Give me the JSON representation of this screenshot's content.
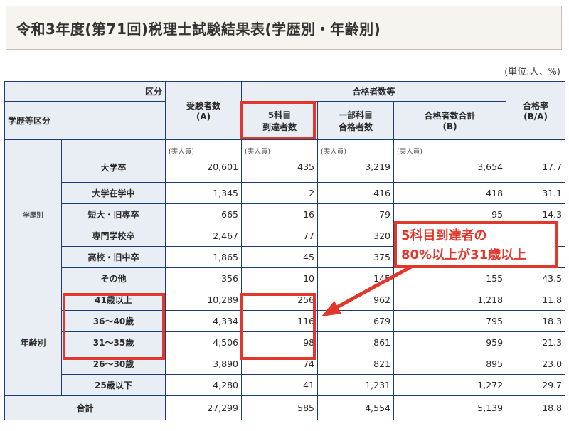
{
  "title": "令和3年度(第71回)税理士試験結果表(学歴別・年齢別)",
  "unit": "(単位:人、%)",
  "header": {
    "kubun": "区分",
    "gakureki_kubun": "学歴等区分",
    "examinees": "受験者数",
    "examinees_sub": "(A)",
    "passers_group": "合格者数等",
    "five_subjects_l1": "5科目",
    "five_subjects_l2": "到達者数",
    "partial_l1": "一部科目",
    "partial_l2": "合格者数",
    "total_passers": "合格者数合計",
    "total_passers_sub": "(B)",
    "pass_rate": "合格率",
    "pass_rate_sub": "(B/A)"
  },
  "note": "(実人員)",
  "groups": {
    "education": "学歴別",
    "age": "年齢別",
    "total": "合計"
  },
  "education_rows": [
    {
      "label": "大学卒",
      "examinees": "20,601",
      "five": "435",
      "partial": "3,219",
      "total": "3,654",
      "rate": "17.7"
    },
    {
      "label": "大学在学中",
      "examinees": "1,345",
      "five": "2",
      "partial": "416",
      "total": "418",
      "rate": "31.1"
    },
    {
      "label": "短大・旧専卒",
      "examinees": "665",
      "five": "16",
      "partial": "79",
      "total": "95",
      "rate": "14.3"
    },
    {
      "label": "専門学校卒",
      "examinees": "2,467",
      "five": "77",
      "partial": "320",
      "total": "",
      "rate": ""
    },
    {
      "label": "高校・旧中卒",
      "examinees": "1,865",
      "five": "45",
      "partial": "375",
      "total": "",
      "rate": ""
    },
    {
      "label": "その他",
      "examinees": "356",
      "five": "10",
      "partial": "145",
      "total": "155",
      "rate": "43.5"
    }
  ],
  "age_rows": [
    {
      "label": "41歳以上",
      "examinees": "10,289",
      "five": "256",
      "partial": "962",
      "total": "1,218",
      "rate": "11.8"
    },
    {
      "label": "36〜40歳",
      "examinees": "4,334",
      "five": "116",
      "partial": "679",
      "total": "795",
      "rate": "18.3"
    },
    {
      "label": "31〜35歳",
      "examinees": "4,506",
      "five": "98",
      "partial": "861",
      "total": "959",
      "rate": "21.3"
    },
    {
      "label": "26〜30歳",
      "examinees": "3,890",
      "five": "74",
      "partial": "821",
      "total": "895",
      "rate": "23.0"
    },
    {
      "label": "25歳以下",
      "examinees": "4,280",
      "five": "41",
      "partial": "1,231",
      "total": "1,272",
      "rate": "29.7"
    }
  ],
  "total_row": {
    "examinees": "27,299",
    "five": "585",
    "partial": "4,554",
    "total": "5,139",
    "rate": "18.8"
  },
  "callout": {
    "line1": "5科目到達者の",
    "line2": "80%以上が31歳以上"
  },
  "colors": {
    "highlight": "#e0382c",
    "header_bg": "#e9eef5",
    "border": "#1f3c72",
    "title_bg": "#f7f3ee"
  }
}
